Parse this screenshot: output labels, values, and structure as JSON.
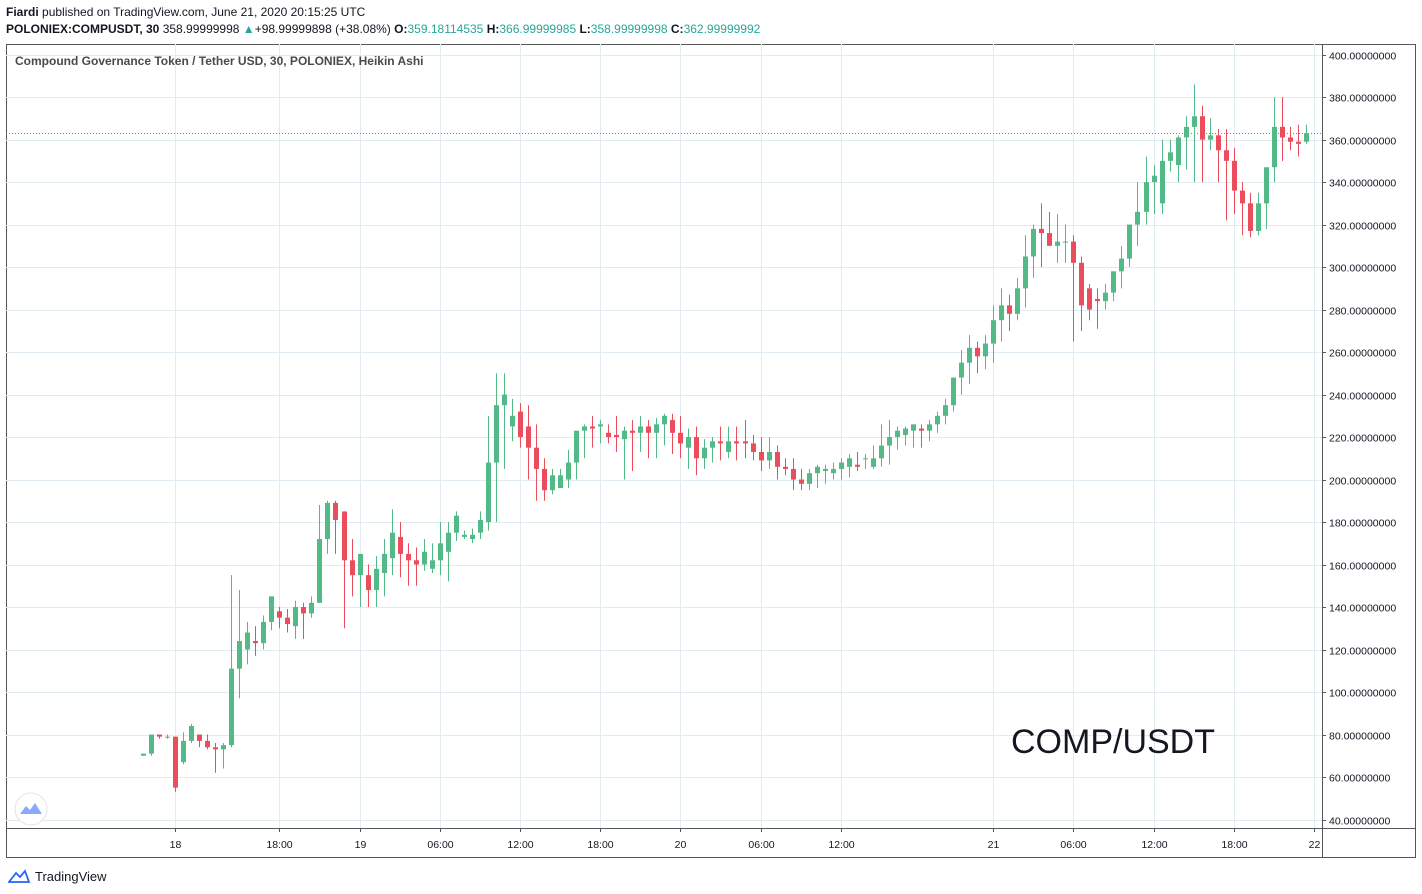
{
  "header": {
    "author": "Fiardi",
    "published_text": "published on TradingView.com, June 21, 2020 20:15:25 UTC"
  },
  "symbol_bar": {
    "symbol": "POLONIEX:COMPUSDT, 30",
    "price": "358.99999998",
    "change_arrow": "▲",
    "change": "+98.99999898 (+38.08%)",
    "o_label": "O:",
    "o_value": "359.18114535",
    "h_label": "H:",
    "h_value": "366.99999985",
    "l_label": "L:",
    "l_value": "358.99999998",
    "c_label": "C:",
    "c_value": "362.99999992"
  },
  "watermark": "COMP/USDT",
  "footer": {
    "brand": "TradingView"
  },
  "colors": {
    "up": "#53b987",
    "down": "#eb4d5c",
    "grid": "#e1ecf2",
    "lastPrice": "#26a69a"
  },
  "chart_data": {
    "type": "candlestick",
    "title": "Compound Governance Token / Tether USD, 30, POLONIEX, Heikin Ashi",
    "ylim": [
      36,
      405
    ],
    "y_ticks": [
      "400.00000000",
      "380.00000000",
      "360.00000000",
      "340.00000000",
      "320.00000000",
      "300.00000000",
      "280.00000000",
      "260.00000000",
      "240.00000000",
      "220.00000000",
      "200.00000000",
      "180.00000000",
      "160.00000000",
      "140.00000000",
      "120.00000000",
      "100.00000000",
      "80.00000000",
      "60.00000000",
      "40.00000000"
    ],
    "x_ticks": [
      "18",
      "18:00",
      "19",
      "06:00",
      "12:00",
      "18:00",
      "20",
      "06:00",
      "12:00",
      "21",
      "06:00",
      "12:00",
      "18:00",
      "22"
    ],
    "x_tick_slots": [
      4,
      17,
      27,
      37,
      47,
      57,
      67,
      77,
      87,
      106,
      116,
      126,
      136,
      146
    ],
    "last_price": 363,
    "candles": [
      [
        70,
        71,
        70,
        71
      ],
      [
        71,
        80,
        70,
        80
      ],
      [
        80,
        80,
        78,
        79
      ],
      [
        79,
        80,
        78,
        79
      ],
      [
        79,
        79,
        53,
        55
      ],
      [
        67,
        81,
        66,
        77
      ],
      [
        77,
        85,
        76,
        84
      ],
      [
        80,
        80,
        74,
        77
      ],
      [
        77,
        80,
        73,
        74
      ],
      [
        74,
        76,
        62,
        73
      ],
      [
        73,
        76,
        64,
        75
      ],
      [
        75,
        155,
        74,
        111
      ],
      [
        111,
        148,
        97,
        124
      ],
      [
        120,
        133,
        113,
        128
      ],
      [
        124,
        131,
        117,
        123
      ],
      [
        123,
        136,
        120,
        133
      ],
      [
        133,
        145,
        129,
        145
      ],
      [
        138,
        140,
        130,
        135
      ],
      [
        135,
        139,
        128,
        132
      ],
      [
        131,
        143,
        125,
        140
      ],
      [
        140,
        142,
        125,
        137
      ],
      [
        137,
        145,
        135,
        142
      ],
      [
        142,
        188,
        142,
        172
      ],
      [
        172,
        190,
        165,
        189
      ],
      [
        189,
        190,
        165,
        181
      ],
      [
        185,
        185,
        130,
        162
      ],
      [
        162,
        172,
        145,
        155
      ],
      [
        155,
        165,
        140,
        165
      ],
      [
        155,
        160,
        140,
        148
      ],
      [
        148,
        164,
        140,
        158
      ],
      [
        156,
        172,
        145,
        165
      ],
      [
        163,
        186,
        155,
        175
      ],
      [
        173,
        180,
        154,
        165
      ],
      [
        165,
        170,
        150,
        162
      ],
      [
        162,
        168,
        150,
        160
      ],
      [
        160,
        172,
        157,
        166
      ],
      [
        158,
        170,
        156,
        162
      ],
      [
        162,
        180,
        155,
        170
      ],
      [
        166,
        180,
        152,
        175
      ],
      [
        175,
        185,
        171,
        183
      ],
      [
        173,
        176,
        172,
        174
      ],
      [
        172,
        177,
        170,
        174
      ],
      [
        175,
        185,
        172,
        181
      ],
      [
        180,
        230,
        176,
        208
      ],
      [
        208,
        250,
        180,
        235
      ],
      [
        235,
        250,
        205,
        240
      ],
      [
        225,
        238,
        218,
        230
      ],
      [
        232,
        236,
        215,
        220
      ],
      [
        225,
        235,
        200,
        215
      ],
      [
        215,
        226,
        190,
        205
      ],
      [
        205,
        210,
        190,
        195
      ],
      [
        195,
        205,
        193,
        202
      ],
      [
        196,
        205,
        196,
        202
      ],
      [
        200,
        214,
        196,
        208
      ],
      [
        208,
        220,
        200,
        223
      ],
      [
        223,
        226,
        210,
        225
      ],
      [
        225,
        230,
        215,
        224
      ],
      [
        225,
        228,
        217,
        226
      ],
      [
        222,
        226,
        217,
        220
      ],
      [
        221,
        230,
        213,
        220
      ],
      [
        219,
        225,
        200,
        223
      ],
      [
        223,
        228,
        204,
        222
      ],
      [
        222,
        230,
        213,
        225
      ],
      [
        225,
        228,
        210,
        222
      ],
      [
        222,
        229,
        210,
        226
      ],
      [
        226,
        231,
        216,
        230
      ],
      [
        228,
        231,
        212,
        222
      ],
      [
        222,
        230,
        210,
        217
      ],
      [
        215,
        224,
        205,
        220
      ],
      [
        220,
        225,
        202,
        210
      ],
      [
        210,
        219,
        205,
        215
      ],
      [
        215,
        220,
        208,
        218
      ],
      [
        218,
        225,
        209,
        217
      ],
      [
        213,
        225,
        210,
        218
      ],
      [
        218,
        225,
        209,
        217
      ],
      [
        218,
        228,
        210,
        217
      ],
      [
        217,
        221,
        209,
        213
      ],
      [
        213,
        220,
        204,
        209
      ],
      [
        209,
        220,
        205,
        213
      ],
      [
        213,
        216,
        200,
        206
      ],
      [
        206,
        210,
        202,
        205
      ],
      [
        205,
        210,
        195,
        200
      ],
      [
        200,
        205,
        195,
        198
      ],
      [
        198,
        205,
        195,
        203
      ],
      [
        203,
        207,
        196,
        206
      ],
      [
        204,
        207,
        198,
        205
      ],
      [
        203,
        208,
        200,
        205
      ],
      [
        205,
        210,
        200,
        208
      ],
      [
        206,
        212,
        201,
        210
      ],
      [
        207,
        213,
        204,
        206
      ],
      [
        210,
        212,
        205,
        210
      ],
      [
        206,
        216,
        205,
        210
      ],
      [
        210,
        226,
        206,
        216
      ],
      [
        216,
        228,
        207,
        220
      ],
      [
        220,
        225,
        214,
        223
      ],
      [
        221,
        225,
        216,
        224
      ],
      [
        223,
        225,
        215,
        226
      ],
      [
        224,
        226,
        215,
        223
      ],
      [
        223,
        228,
        218,
        226
      ],
      [
        226,
        232,
        222,
        230
      ],
      [
        230,
        238,
        226,
        235
      ],
      [
        235,
        245,
        232,
        248
      ],
      [
        248,
        261,
        240,
        255
      ],
      [
        255,
        268,
        245,
        262
      ],
      [
        262,
        265,
        250,
        258
      ],
      [
        258,
        268,
        252,
        264
      ],
      [
        264,
        282,
        255,
        275
      ],
      [
        275,
        290,
        265,
        282
      ],
      [
        282,
        287,
        270,
        278
      ],
      [
        278,
        295,
        275,
        290
      ],
      [
        290,
        315,
        281,
        305
      ],
      [
        305,
        320,
        295,
        318
      ],
      [
        318,
        330,
        300,
        316
      ],
      [
        316,
        326,
        310,
        310
      ],
      [
        310,
        325,
        302,
        312
      ],
      [
        312,
        320,
        302,
        312
      ],
      [
        312,
        315,
        265,
        302
      ],
      [
        302,
        305,
        270,
        282
      ],
      [
        290,
        292,
        275,
        280
      ],
      [
        285,
        290,
        271,
        284
      ],
      [
        284,
        292,
        280,
        288
      ],
      [
        288,
        295,
        284,
        298
      ],
      [
        298,
        310,
        290,
        304
      ],
      [
        304,
        320,
        300,
        320
      ],
      [
        320,
        340,
        310,
        326
      ],
      [
        326,
        352,
        320,
        340
      ],
      [
        340,
        348,
        325,
        343
      ],
      [
        330,
        360,
        325,
        350
      ],
      [
        350,
        360,
        345,
        354
      ],
      [
        348,
        362,
        340,
        361
      ],
      [
        361,
        371,
        346,
        366
      ],
      [
        366,
        386,
        340,
        371
      ],
      [
        371,
        376,
        340,
        360
      ],
      [
        360,
        370,
        355,
        362
      ],
      [
        362,
        365,
        340,
        355
      ],
      [
        355,
        365,
        322,
        350
      ],
      [
        350,
        356,
        325,
        336
      ],
      [
        336,
        340,
        315,
        330
      ],
      [
        330,
        335,
        314,
        317
      ],
      [
        317,
        335,
        315,
        330
      ],
      [
        330,
        345,
        318,
        347
      ],
      [
        347,
        380,
        340,
        366
      ],
      [
        366,
        380,
        350,
        361
      ],
      [
        361,
        366,
        355,
        359
      ],
      [
        359,
        367,
        352,
        358
      ],
      [
        359,
        367,
        358,
        363
      ]
    ]
  }
}
